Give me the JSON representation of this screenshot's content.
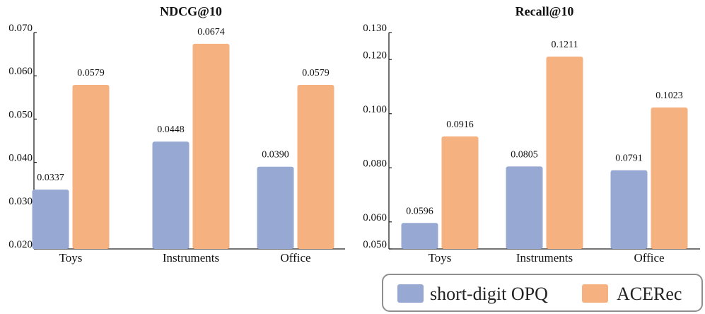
{
  "chart_data": [
    {
      "type": "bar",
      "title": "NDCG@10",
      "categories": [
        "Toys",
        "Instruments",
        "Office"
      ],
      "series": [
        {
          "name": "short-digit OPQ",
          "values": [
            0.0337,
            0.0448,
            0.039
          ],
          "labels": [
            "0.0337",
            "0.0448",
            "0.0390"
          ]
        },
        {
          "name": "ACERec",
          "values": [
            0.0579,
            0.0674,
            0.0579
          ],
          "labels": [
            "0.0579",
            "0.0674",
            "0.0579"
          ]
        }
      ],
      "ylim": [
        0.02,
        0.07
      ],
      "yticks": [
        0.02,
        0.03,
        0.04,
        0.05,
        0.06,
        0.07
      ],
      "ytick_labels": [
        "0.020",
        "0.030",
        "0.040",
        "0.050",
        "0.060",
        "0.070"
      ],
      "xlabel": "",
      "ylabel": "",
      "grid": false
    },
    {
      "type": "bar",
      "title": "Recall@10",
      "categories": [
        "Toys",
        "Instruments",
        "Office"
      ],
      "series": [
        {
          "name": "short-digit OPQ",
          "values": [
            0.0596,
            0.0805,
            0.0791
          ],
          "labels": [
            "0.0596",
            "0.0805",
            "0.0791"
          ]
        },
        {
          "name": "ACERec",
          "values": [
            0.0916,
            0.1211,
            0.1023
          ],
          "labels": [
            "0.0916",
            "0.1211",
            "0.1023"
          ]
        }
      ],
      "ylim": [
        0.05,
        0.13
      ],
      "yticks": [
        0.05,
        0.06,
        0.08,
        0.1,
        0.12,
        0.13
      ],
      "ytick_labels": [
        "0.050",
        "0.060",
        "0.080",
        "0.100",
        "0.120",
        "0.130"
      ],
      "xlabel": "",
      "ylabel": "",
      "grid": false
    }
  ],
  "legend": {
    "position": "bottom-right",
    "items": [
      {
        "name": "short-digit OPQ",
        "color": "#97a8d2"
      },
      {
        "name": "ACERec",
        "color": "#f5b280"
      }
    ]
  },
  "colors": {
    "series": [
      "#97a8d2",
      "#f5b280"
    ],
    "axis": "#222222",
    "legend_border": "#8f8f8f"
  }
}
